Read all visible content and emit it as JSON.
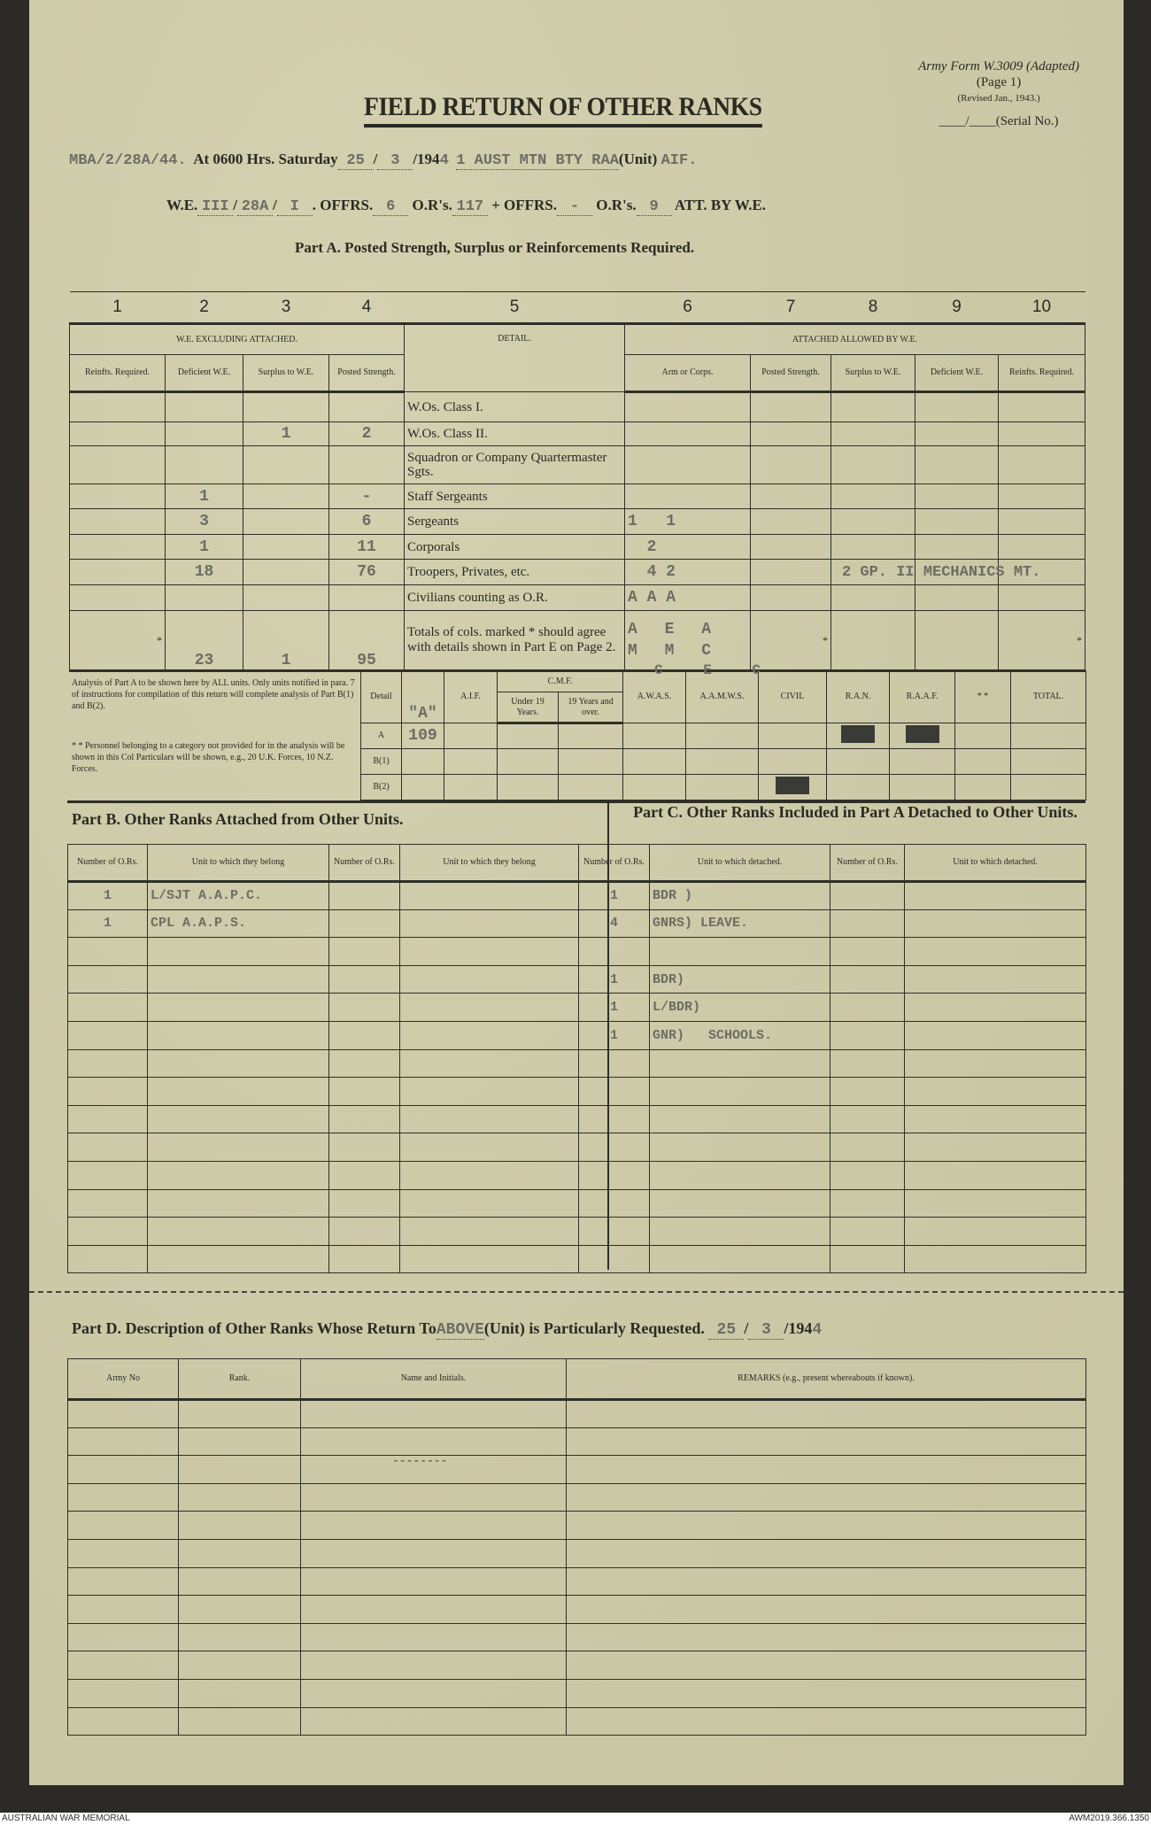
{
  "header": {
    "form_ref": "Army Form W.3009 (Adapted)",
    "page": "(Page 1)",
    "revised": "(Revised Jan., 1943.)",
    "serial": "____/____(Serial No.)",
    "title": "FIELD RETURN OF OTHER RANKS",
    "ref_typed": "MBA/2/28A/44.",
    "at_label": "At 0600 Hrs. Saturday",
    "day": "25",
    "month": "3",
    "year_prefix": "/194",
    "year_typed": "4",
    "unit_typed": "1 AUST MTN BTY RAA",
    "unit_label": "(Unit)",
    "aif": "AIF.",
    "we_label": "W.E.",
    "we_1": "III",
    "we_2": "28A",
    "we_3": "I",
    "offrs_label": "OFFRS.",
    "offrs": "6",
    "ors_label": "O.R's.",
    "ors": "117",
    "plus": "+",
    "att_offrs": "-",
    "att_ors": "9",
    "att_label": "ATT. BY W.E."
  },
  "part_a": {
    "heading": "Part A. Posted Strength, Surplus or Reinforcements Required.",
    "col_numbers": [
      "1",
      "2",
      "3",
      "4",
      "5",
      "6",
      "7",
      "8",
      "9",
      "10"
    ],
    "group_left": "W.E. EXCLUDING ATTACHED.",
    "group_right": "ATTACHED ALLOWED BY W.E.",
    "detail_header": "DETAIL.",
    "sub_headers": [
      "Reinfts. Required.",
      "Deficient W.E.",
      "Surplus to W.E.",
      "Posted Strength.",
      "Arm or Corps.",
      "Posted Strength.",
      "Surplus to W.E.",
      "Deficient W.E.",
      "Reinfts. Required."
    ],
    "rows": [
      {
        "detail": "W.Os. Class I.",
        "c2": "",
        "c3": "",
        "c4": "",
        "c6": ""
      },
      {
        "detail": "W.Os. Class II.",
        "c2": "",
        "c3": "1",
        "c4": "2",
        "c6": ""
      },
      {
        "detail": "Squadron or Company Quartermaster Sgts.",
        "c2": "",
        "c3": "",
        "c4": "",
        "c6": ""
      },
      {
        "detail": "Staff Sergeants",
        "c2": "1",
        "c3": "",
        "c4": "-",
        "c6": ""
      },
      {
        "detail": "Sergeants",
        "c2": "3",
        "c3": "",
        "c4": "6",
        "c6": "1   1"
      },
      {
        "detail": "Corporals",
        "c2": "1",
        "c3": "",
        "c4": "11",
        "c6": "  2"
      },
      {
        "detail": "Troopers, Privates, etc.",
        "c2": "18",
        "c3": "",
        "c4": "76",
        "c6": "  4 2"
      },
      {
        "detail": "Civilians counting as O.R.",
        "c2": "",
        "c3": "",
        "c4": "",
        "c6": "A A A"
      }
    ],
    "troopers_note": "2 GP. II MECHANICS MT.",
    "totals": {
      "detail": "Totals of cols. marked * should agree with details shown in Part E on Page 2.",
      "c2": "23",
      "c3": "1",
      "c4": "95",
      "c6_line1": "A E A",
      "c6_line2": "M M C",
      "c6_line3": "C E C",
      "star": "*"
    }
  },
  "analysis": {
    "note1": "Analysis of Part A to be shown here by ALL units. Only units notified in para. 7 of instructions for compilation of this return will complete analysis of Part B(1) and B(2).",
    "note2": "* * Personnel belonging to a category not provided for in the analysis will be shown in this Col Particulars will be shown, e.g., 20 U.K. Forces, 10 N.Z. Forces.",
    "detail_label": "Detail",
    "a_typed": "\"A\"",
    "aif": "A.I.F.",
    "cmf": "C.M.F.",
    "under19": "Under 19 Years.",
    "over19": "19 Years and over.",
    "awas": "A.W.A.S.",
    "aamws": "A.A.M.W.S.",
    "civil": "CIVIL",
    "ran": "R.A.N.",
    "raaf": "R.A.A.F.",
    "other": "* *",
    "total": "TOTAL.",
    "rows": [
      "A",
      "B(1)",
      "B(2)"
    ],
    "a_value": "109"
  },
  "part_b": {
    "heading": "Part B. Other Ranks Attached from Other Units.",
    "headers": [
      "Number of O.Rs.",
      "Unit to which they belong",
      "Number of O.Rs.",
      "Unit to which they belong"
    ],
    "rows": [
      [
        "1",
        "L/SJT A.A.P.C."
      ],
      [
        "1",
        "CPL A.A.P.S."
      ]
    ]
  },
  "part_c": {
    "heading": "Part C. Other Ranks Included in Part A Detached to Other Units.",
    "headers": [
      "Number of O.Rs.",
      "Unit to which detached.",
      "Number of O.Rs.",
      "Unit to which detached."
    ],
    "rows": [
      [
        "1",
        "BDR )"
      ],
      [
        "4",
        "GNRS) LEAVE."
      ],
      [
        "",
        ""
      ],
      [
        "1",
        "BDR)"
      ],
      [
        "1",
        "L/BDR)"
      ],
      [
        "1",
        "GNR)   SCHOOLS."
      ]
    ]
  },
  "part_d": {
    "heading_pre": "Part D. Description of Other Ranks Whose Return To",
    "unit_typed": "ABOVE",
    "heading_post": "(Unit) is Particularly Requested.",
    "date_day": "25",
    "date_month": "3",
    "date_year_prefix": "/194",
    "date_year_typed": "4",
    "headers": [
      "Army No",
      "Rank.",
      "Name and Initials.",
      "REMARKS (e.g., present whereabouts if known)."
    ],
    "typed_mark": "--------"
  },
  "footer": {
    "left": "AUSTRALIAN WAR MEMORIAL",
    "right": "AWM2019.366.1350"
  }
}
